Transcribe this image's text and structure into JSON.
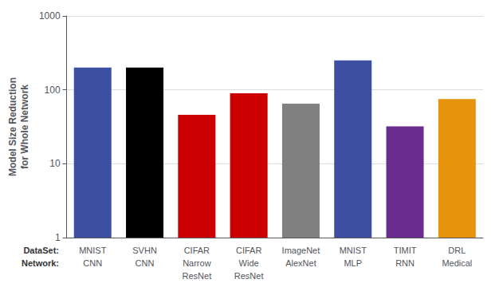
{
  "chart_data": {
    "type": "bar",
    "categories": [
      "MNIST\nCNN",
      "SVHN\nCNN",
      "CIFAR\nNarrow\nResNet",
      "CIFAR\nWide\nResNet",
      "ImageNet\nAlexNet",
      "MNIST\nMLP",
      "TIMIT\nRNN",
      "DRL\nMedical"
    ],
    "values": [
      200,
      200,
      46,
      90,
      65,
      250,
      32,
      75
    ],
    "colors": [
      "#3c4fa0",
      "#000000",
      "#cc0000",
      "#cc0000",
      "#808080",
      "#3c4fa0",
      "#6a2c8e",
      "#e8940a"
    ],
    "ylabel": "Model Size Reduction\nfor Whole Network",
    "log": "y",
    "ylim": [
      1,
      1000
    ],
    "yticks": [
      1,
      10,
      100,
      1000
    ],
    "grid": true,
    "annotations": [
      "DataSet:",
      "Network:"
    ]
  }
}
